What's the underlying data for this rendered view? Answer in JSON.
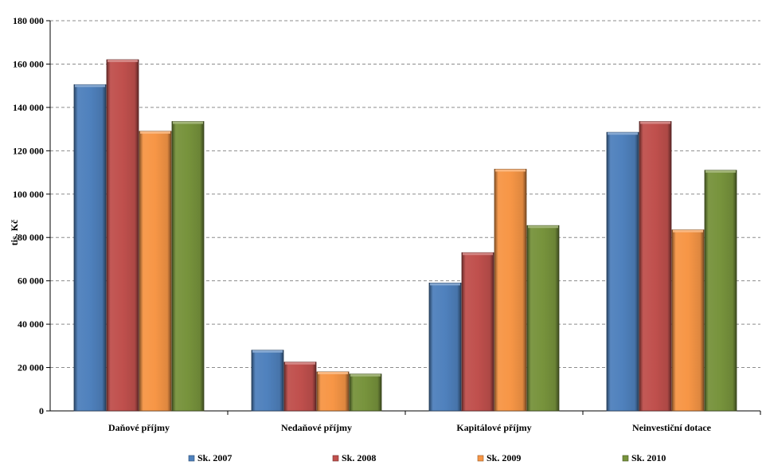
{
  "chart_data": {
    "type": "bar",
    "ylabel": "tis. Kč",
    "ylim": [
      0,
      180000
    ],
    "y_ticks": [
      0,
      20000,
      40000,
      60000,
      80000,
      100000,
      120000,
      140000,
      160000,
      180000
    ],
    "y_tick_labels": [
      "0",
      "20 000",
      "40 000",
      "60 000",
      "80 000",
      "100 000",
      "120 000",
      "140 000",
      "160 000",
      "180 000"
    ],
    "categories": [
      "Daňové příjmy",
      "Nedaňové příjmy",
      "Kapitálové příjmy",
      "Neinvestiční dotace"
    ],
    "series": [
      {
        "name": "Sk. 2007",
        "color": "#4F81BD",
        "values": [
          150500,
          28000,
          59000,
          128500
        ]
      },
      {
        "name": "Sk. 2008",
        "color": "#C0504D",
        "values": [
          162000,
          22500,
          73000,
          133500
        ]
      },
      {
        "name": "Sk. 2009",
        "color": "#F79646",
        "values": [
          129000,
          18000,
          111500,
          83500
        ]
      },
      {
        "name": "Sk. 2010",
        "color": "#77933C",
        "values": [
          133500,
          17000,
          85500,
          111000
        ]
      }
    ],
    "grid": true,
    "legend_position": "bottom"
  }
}
